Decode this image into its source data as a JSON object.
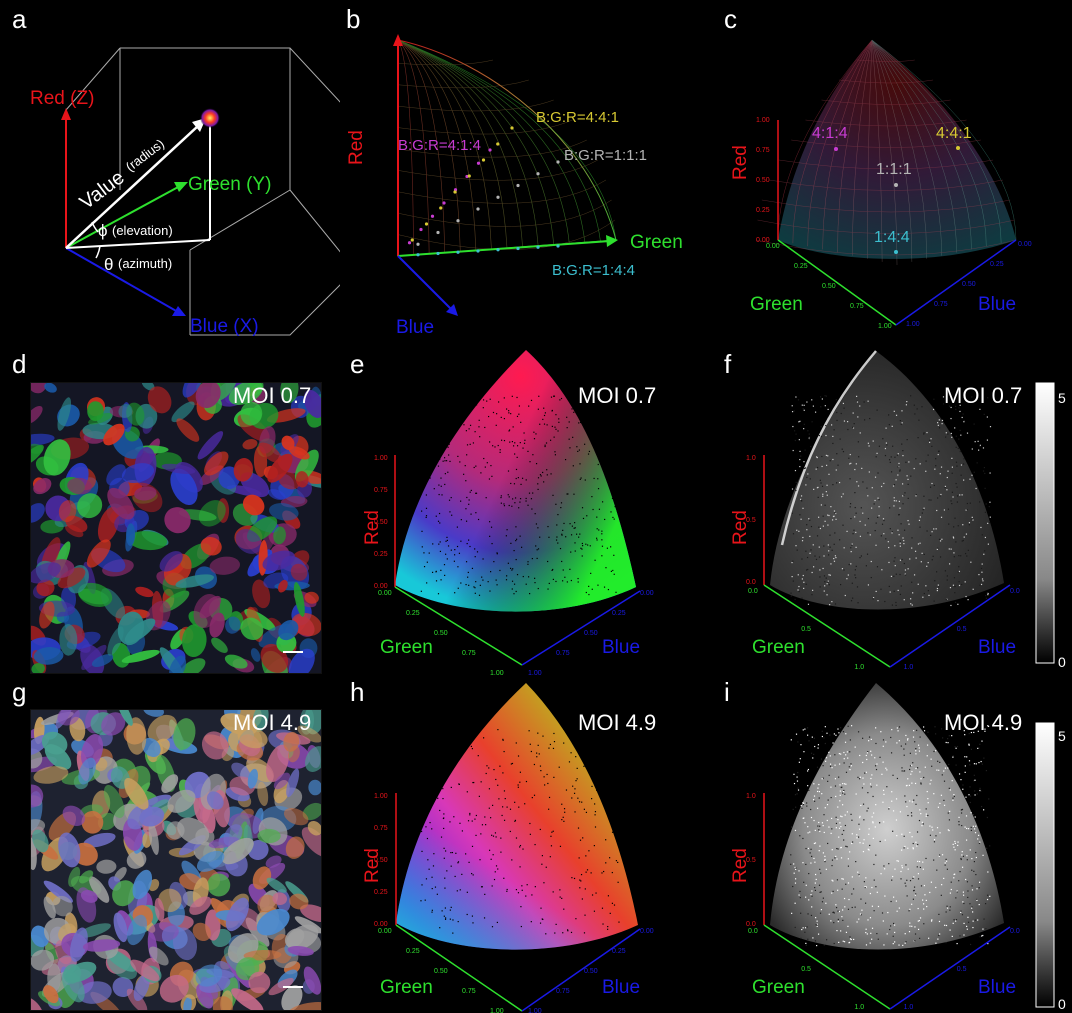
{
  "panels": {
    "a": {
      "letter": "a",
      "red": "Red (Z)",
      "green": "Green (Y)",
      "blue": "Blue (X)",
      "value": "Value",
      "radius": "(radius)",
      "phi": "ϕ",
      "elevation": "(elevation)",
      "theta": "θ",
      "azimuth": "(azimuth)"
    },
    "b": {
      "letter": "b",
      "red": "Red",
      "green": "Green",
      "blue": "Blue",
      "r414": "B:G:R=4:1:4",
      "r441": "B:G:R=4:4:1",
      "r111": "B:G:R=1:1:1",
      "r144": "B:G:R=1:4:4"
    },
    "c": {
      "letter": "c",
      "red": "Red",
      "green": "Green",
      "blue": "Blue",
      "p414": "4:1:4",
      "p441": "4:4:1",
      "p111": "1:1:1",
      "p144": "1:4:4",
      "zticks": [
        "1.00",
        "0.75",
        "0.50",
        "0.25",
        "0.00"
      ],
      "gticks": [
        "0.00",
        "0.25",
        "0.50",
        "0.75",
        "1.00"
      ],
      "bticks": [
        "0.00",
        "0.25",
        "0.50",
        "0.75",
        "1.00"
      ]
    },
    "d": {
      "letter": "d",
      "moi": "MOI 0.7"
    },
    "e": {
      "letter": "e",
      "moi": "MOI 0.7",
      "red": "Red",
      "green": "Green",
      "blue": "Blue",
      "zticks": [
        "1.00",
        "0.75",
        "0.50",
        "0.25",
        "0.00"
      ],
      "gticks": [
        "0.00",
        "0.25",
        "0.50",
        "0.75",
        "1.00"
      ],
      "bticks": [
        "0.00",
        "0.25",
        "0.50",
        "0.75",
        "1.00"
      ]
    },
    "f": {
      "letter": "f",
      "moi": "MOI 0.7",
      "red": "Red",
      "green": "Green",
      "blue": "Blue",
      "zticks": [
        "1.0",
        "0.5",
        "0.0"
      ],
      "gticks": [
        "0.0",
        "0.5",
        "1.0"
      ],
      "bticks": [
        "0.0",
        "0.5",
        "1.0"
      ],
      "cbar_max": "5",
      "cbar_min": "0"
    },
    "g": {
      "letter": "g",
      "moi": "MOI 4.9"
    },
    "h": {
      "letter": "h",
      "moi": "MOI 4.9",
      "red": "Red",
      "green": "Green",
      "blue": "Blue",
      "zticks": [
        "1.00",
        "0.75",
        "0.50",
        "0.25",
        "0.00"
      ],
      "gticks": [
        "0.00",
        "0.25",
        "0.50",
        "0.75",
        "1.00"
      ],
      "bticks": [
        "0.00",
        "0.25",
        "0.50",
        "0.75",
        "1.00"
      ]
    },
    "i": {
      "letter": "i",
      "moi": "MOI 4.9",
      "red": "Red",
      "green": "Green",
      "blue": "Blue",
      "zticks": [
        "1.0",
        "0.5",
        "0.0"
      ],
      "gticks": [
        "0.0",
        "0.5",
        "1.0"
      ],
      "bticks": [
        "0.0",
        "0.5",
        "1.0"
      ],
      "cbar_max": "5",
      "cbar_min": "0"
    }
  },
  "colors": {
    "red": "#e8141a",
    "green": "#2ee02e",
    "blue": "#1a1ae6",
    "magenta": "#c83cd2",
    "yellow": "#d6c832",
    "gray": "#b4b4b4",
    "cyan": "#3cbfcf"
  }
}
